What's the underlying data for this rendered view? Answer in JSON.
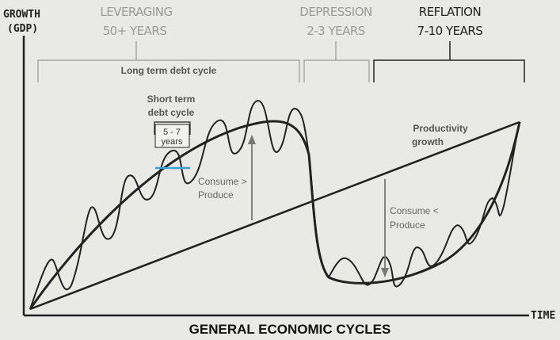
{
  "axes": {
    "y_label_line1": "GROWTH",
    "y_label_line2": "(GDP)",
    "x_label": "TIME"
  },
  "phases": [
    {
      "name": "LEVERAGING",
      "duration": "50+ YEARS"
    },
    {
      "name": "DEPRESSION",
      "duration": "2-3 YEARS"
    },
    {
      "name": "REFLATION",
      "duration": "7-10 YEARS"
    }
  ],
  "labels": {
    "long_term": "Long term debt cycle",
    "short_term_line1": "Short term",
    "short_term_line2": "debt cycle",
    "period_line1": "5 - 7",
    "period_line2": "years",
    "consume_gt_line1": "Consume >",
    "consume_gt_line2": "Produce",
    "consume_lt_line1": "Consume <",
    "consume_lt_line2": "Produce",
    "productivity_line1": "Productivity",
    "productivity_line2": "growth"
  },
  "title": "GENERAL ECONOMIC CYCLES",
  "colors": {
    "background": "#e9e9e6",
    "curve": "#222222",
    "bracket": "#a8a8a6",
    "arrow": "#777777",
    "marker": "#3aa0d8"
  }
}
